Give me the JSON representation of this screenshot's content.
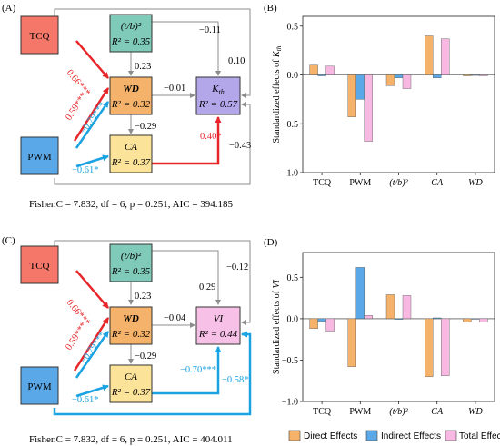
{
  "panels": {
    "A": {
      "label": "(A)",
      "nodes": {
        "tcq": "TCQ",
        "pwm": "PWM",
        "tb_name": "(t/b)²",
        "tb_r2": "R² = 0.35",
        "wd_name": "WD",
        "wd_r2": "R² = 0.32",
        "ca_name": "CA",
        "ca_r2": "R² = 0.37",
        "k_name": "K",
        "k_sub": "th",
        "k_r2": "R² = 0.57"
      },
      "coefs": {
        "tcq_wd": "0.66***",
        "pwm_tcq_wd": "0.59***",
        "pwm_wd": "−0.79***",
        "pwm_ca": "−0.61*",
        "tb_wd": "0.23",
        "wd_ca": "−0.29",
        "wd_k": "−0.01",
        "tb_k": "−0.11",
        "tcq_k": "0.10",
        "ca_k": "0.40*",
        "pwm_k": "−0.43"
      },
      "fit": "Fisher.C = 7.832, df = 6, p = 0.251, AIC = 394.185"
    },
    "C": {
      "label": "(C)",
      "nodes": {
        "tcq": "TCQ",
        "pwm": "PWM",
        "tb_name": "(t/b)²",
        "tb_r2": "R² = 0.35",
        "wd_name": "WD",
        "wd_r2": "R² = 0.32",
        "ca_name": "CA",
        "ca_r2": "R² = 0.37",
        "vi_name": "VI",
        "vi_r2": "R² = 0.44"
      },
      "coefs": {
        "tcq_wd": "0.66***",
        "pwm_tcq_wd": "0.59***",
        "pwm_wd": "−0.79***",
        "pwm_ca": "−0.61*",
        "tb_wd": "0.23",
        "wd_ca": "−0.29",
        "wd_vi": "−0.04",
        "tb_vi": "0.29",
        "tcq_vi": "−0.12",
        "ca_vi": "−0.70***",
        "pwm_vi": "−0.58*"
      },
      "fit": "Fisher.C = 7.832, df = 6, p = 0.251, AIC = 404.011"
    }
  },
  "colors": {
    "tcq_fill": "#f4776a",
    "pwm_fill": "#5aa8e8",
    "tb_fill": "#7fcab8",
    "wd_fill": "#f4b26a",
    "ca_fill": "#fbe39a",
    "k_fill": "#b3a7ea",
    "vi_fill": "#f7c0e6",
    "pos_arrow": "#e8262a",
    "neg_arrow": "#1aa3e0",
    "ns_arrow": "#8c8c8c",
    "direct": "#f4b26a",
    "indirect": "#5aa8e8",
    "total": "#f7b8e2"
  },
  "legend": {
    "direct": "Direct Effects",
    "indirect": "Indirect Effects",
    "total": "Total Effects"
  },
  "chart_data": [
    {
      "panel_label": "(B)",
      "type": "bar",
      "ylabel_prefix": "Standardized effects of ",
      "ylabel_var": "K",
      "ylabel_sub": "th",
      "categories": [
        "TCQ",
        "PWM",
        "(t/b)²",
        "CA",
        "WD"
      ],
      "ylim": [
        -1.0,
        0.6
      ],
      "yticks": [
        "0.5",
        "0.0",
        "−0.5",
        "−1.0"
      ],
      "series": [
        {
          "name": "Direct Effects",
          "values": [
            0.1,
            -0.43,
            -0.11,
            0.4,
            -0.01
          ]
        },
        {
          "name": "Indirect Effects",
          "values": [
            -0.01,
            -0.25,
            -0.03,
            -0.03,
            0.0
          ]
        },
        {
          "name": "Total Effects",
          "values": [
            0.09,
            -0.68,
            -0.14,
            0.37,
            -0.01
          ]
        }
      ]
    },
    {
      "panel_label": "(D)",
      "type": "bar",
      "ylabel_prefix": "Standardized effects of ",
      "ylabel_var": "VI",
      "ylabel_sub": "",
      "categories": [
        "TCQ",
        "PWM",
        "(t/b)²",
        "CA",
        "WD"
      ],
      "ylim": [
        -1.0,
        0.8
      ],
      "yticks": [
        "0.5",
        "0.0",
        "−0.5",
        "−1.0"
      ],
      "series": [
        {
          "name": "Direct Effects",
          "values": [
            -0.12,
            -0.58,
            0.29,
            -0.7,
            -0.04
          ]
        },
        {
          "name": "Indirect Effects",
          "values": [
            -0.03,
            0.62,
            -0.01,
            0.01,
            0.0
          ]
        },
        {
          "name": "Total Effects",
          "values": [
            -0.15,
            0.04,
            0.28,
            -0.69,
            -0.04
          ]
        }
      ]
    }
  ]
}
